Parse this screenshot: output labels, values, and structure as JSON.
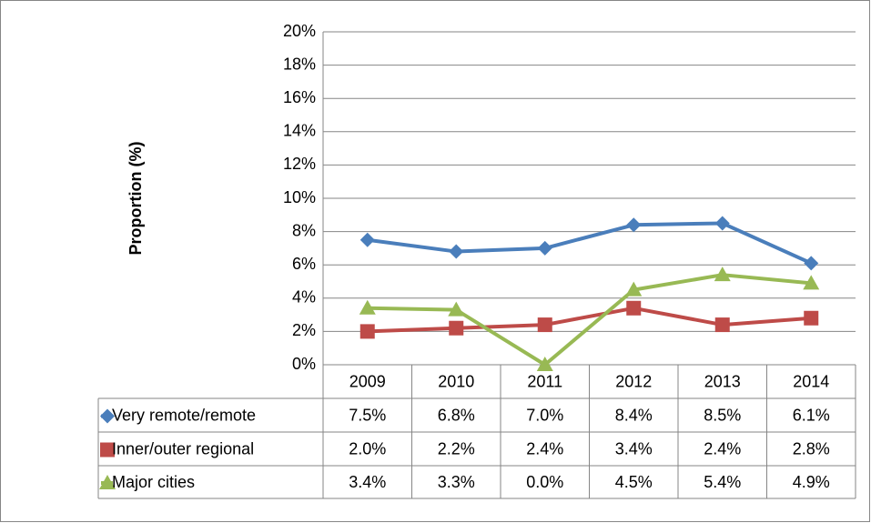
{
  "chart_data": {
    "type": "line",
    "y_label": "Proportion (%)",
    "categories": [
      "2009",
      "2010",
      "2011",
      "2012",
      "2013",
      "2014"
    ],
    "series": [
      {
        "name": "Very remote/remote",
        "color": "#4a7ebb",
        "marker": "diamond",
        "values": [
          7.5,
          6.8,
          7.0,
          8.4,
          8.5,
          6.1
        ],
        "value_labels": [
          "7.5%",
          "6.8%",
          "7.0%",
          "8.4%",
          "8.5%",
          "6.1%"
        ]
      },
      {
        "name": "Inner/outer regional",
        "color": "#be4b48",
        "marker": "square",
        "values": [
          2.0,
          2.2,
          2.4,
          3.4,
          2.4,
          2.8
        ],
        "value_labels": [
          "2.0%",
          "2.2%",
          "2.4%",
          "3.4%",
          "2.4%",
          "2.8%"
        ]
      },
      {
        "name": "Major cities",
        "color": "#98b954",
        "marker": "triangle",
        "values": [
          3.4,
          3.3,
          0.0,
          4.5,
          5.4,
          4.9
        ],
        "value_labels": [
          "3.4%",
          "3.3%",
          "0.0%",
          "4.5%",
          "5.4%",
          "4.9%"
        ]
      }
    ],
    "ylim": [
      0,
      20
    ],
    "yticks": [
      {
        "value": 0,
        "label": "0%"
      },
      {
        "value": 2,
        "label": "2%"
      },
      {
        "value": 4,
        "label": "4%"
      },
      {
        "value": 6,
        "label": "6%"
      },
      {
        "value": 8,
        "label": "8%"
      },
      {
        "value": 10,
        "label": "10%"
      },
      {
        "value": 12,
        "label": "12%"
      },
      {
        "value": 14,
        "label": "14%"
      },
      {
        "value": 16,
        "label": "16%"
      },
      {
        "value": 18,
        "label": "18%"
      },
      {
        "value": 20,
        "label": "20%"
      }
    ],
    "grid": true
  }
}
